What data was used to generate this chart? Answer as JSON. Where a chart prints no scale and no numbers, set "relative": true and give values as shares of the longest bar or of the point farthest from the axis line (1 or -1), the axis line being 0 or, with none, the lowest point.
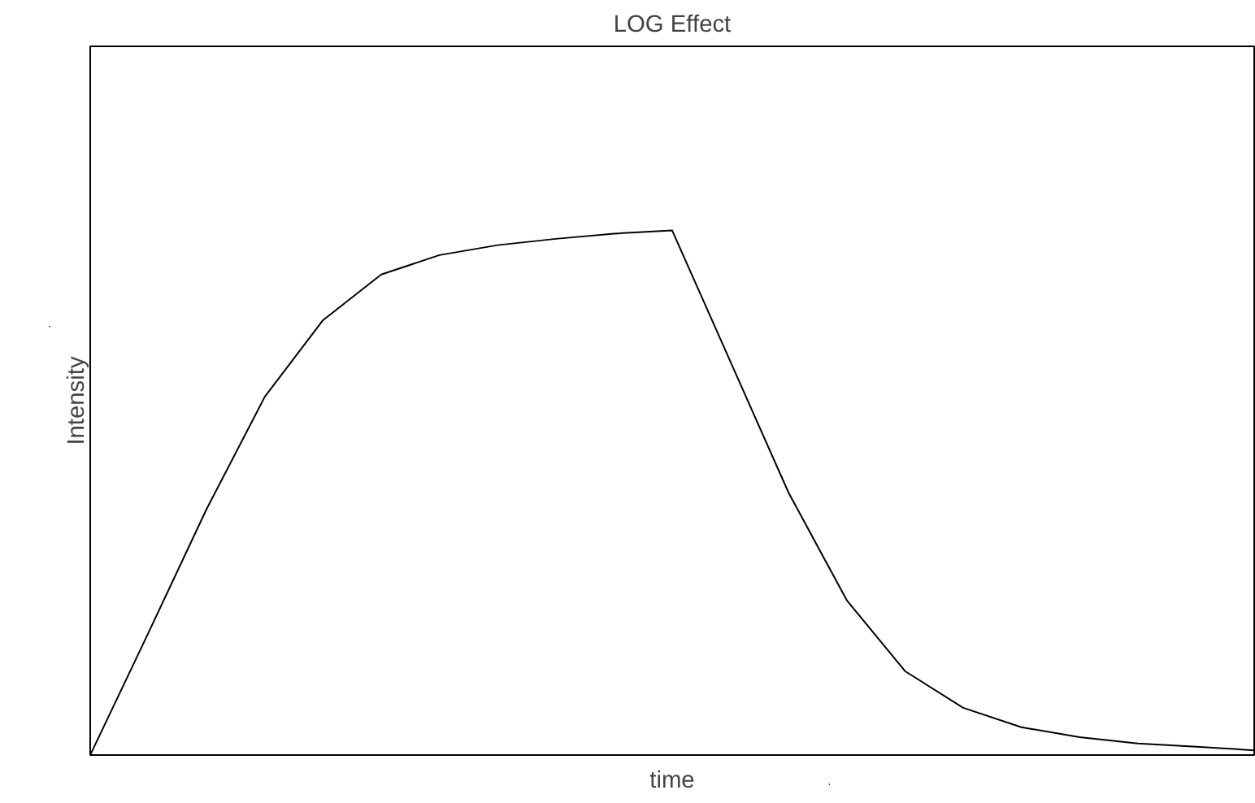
{
  "chart_data": {
    "type": "line",
    "title": "LOG Effect",
    "xlabel": "time",
    "ylabel": "Intensity",
    "relative": true,
    "grid": false,
    "marker": "none",
    "line_style": "solid",
    "categories": [
      null,
      null,
      null,
      null,
      null,
      null,
      null,
      null,
      null,
      null,
      null,
      null,
      null,
      null,
      null,
      null,
      null,
      null,
      null,
      null,
      null
    ],
    "series": [
      {
        "color": "#000000",
        "values": [
          0,
          0.233,
          0.469,
          0.683,
          0.829,
          0.916,
          0.953,
          0.972,
          0.984,
          0.994,
          1,
          0.75,
          0.5,
          0.295,
          0.16,
          0.09,
          0.053,
          0.034,
          0.022,
          0.016,
          0.009
        ]
      }
    ]
  }
}
